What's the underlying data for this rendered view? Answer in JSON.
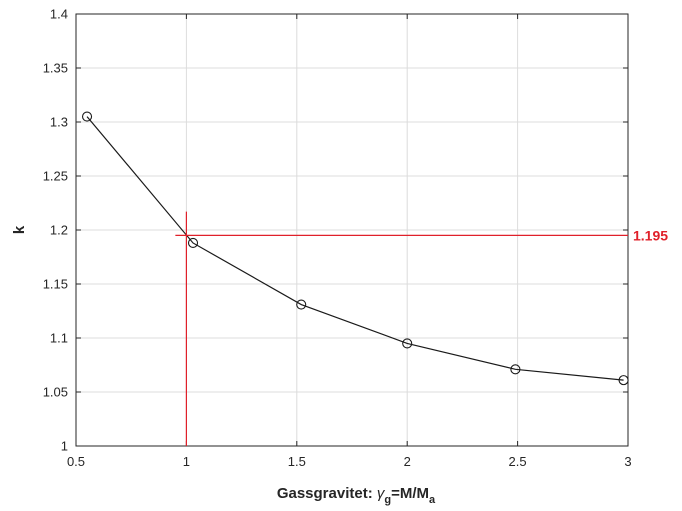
{
  "chart_data": {
    "type": "line",
    "title": "",
    "xlabel": {
      "main": "Gassgravitet: ",
      "symbol": "γ",
      "symbol_sub": "g",
      "eq": "=M/M",
      "eq_sub": "a"
    },
    "ylabel": "k",
    "xlim": [
      0.5,
      3
    ],
    "ylim": [
      1,
      1.4
    ],
    "xticks": [
      "0.5",
      "1",
      "1.5",
      "2",
      "2.5",
      "3"
    ],
    "yticks": [
      "1",
      "1.05",
      "1.1",
      "1.15",
      "1.2",
      "1.25",
      "1.3",
      "1.35",
      "1.4"
    ],
    "grid": true,
    "legend": "none",
    "series": [
      {
        "x": [
          0.55,
          1.03,
          1.52,
          2.0,
          2.49,
          2.98
        ],
        "y": [
          1.305,
          1.188,
          1.131,
          1.095,
          1.071,
          1.061
        ],
        "color": "#1a1a1a",
        "marker": "circle"
      }
    ],
    "annotations": {
      "color": "#e0202a",
      "vline_x": 1.0,
      "vline_y_range": [
        1,
        1.217
      ],
      "hline_y": 1.195,
      "hline_x_start": 0.95,
      "value_label": "1.195"
    }
  }
}
